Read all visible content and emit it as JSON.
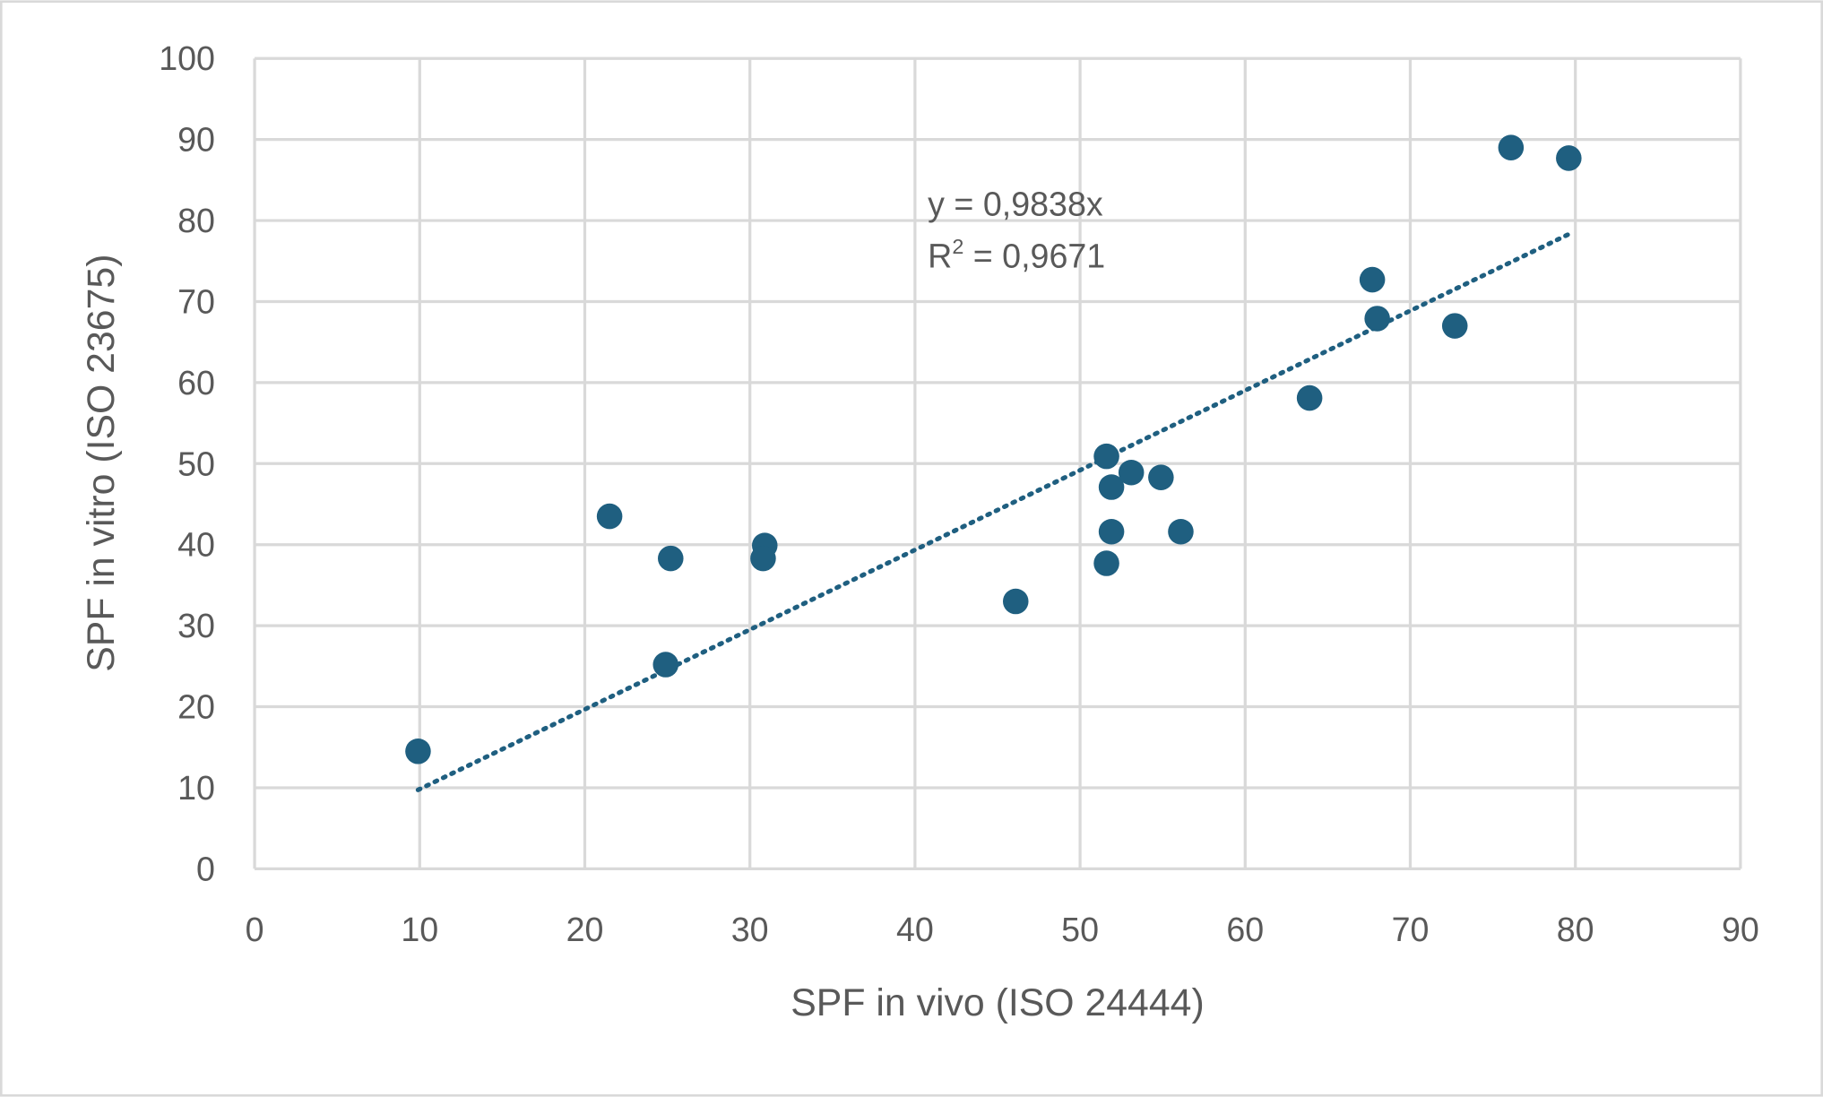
{
  "chart_data": {
    "type": "scatter",
    "xlabel": "SPF in vivo (ISO 24444)",
    "ylabel": "SPF in vitro (ISO 23675)",
    "xlim": [
      0,
      90
    ],
    "ylim": [
      0,
      100
    ],
    "xticks": [
      0,
      10,
      20,
      30,
      40,
      50,
      60,
      70,
      80,
      90
    ],
    "yticks": [
      0,
      10,
      20,
      30,
      40,
      50,
      60,
      70,
      80,
      90,
      100
    ],
    "grid": true,
    "marker_color": "#1f5f80",
    "gridline_color": "#d9d9d9",
    "points": [
      {
        "x": 9.9,
        "y": 14.5
      },
      {
        "x": 21.5,
        "y": 43.5
      },
      {
        "x": 25.2,
        "y": 38.3
      },
      {
        "x": 24.9,
        "y": 25.2
      },
      {
        "x": 30.9,
        "y": 39.9
      },
      {
        "x": 30.8,
        "y": 38.3
      },
      {
        "x": 46.1,
        "y": 33.0
      },
      {
        "x": 51.6,
        "y": 50.9
      },
      {
        "x": 51.9,
        "y": 47.1
      },
      {
        "x": 53.1,
        "y": 48.9
      },
      {
        "x": 54.9,
        "y": 48.3
      },
      {
        "x": 51.9,
        "y": 41.6
      },
      {
        "x": 56.1,
        "y": 41.6
      },
      {
        "x": 51.6,
        "y": 37.7
      },
      {
        "x": 63.9,
        "y": 58.1
      },
      {
        "x": 67.7,
        "y": 72.7
      },
      {
        "x": 68.0,
        "y": 67.9
      },
      {
        "x": 72.7,
        "y": 67.0
      },
      {
        "x": 76.1,
        "y": 89.0
      },
      {
        "x": 79.6,
        "y": 87.7
      }
    ],
    "trendline": {
      "type": "linear-through-origin",
      "slope": 0.9838,
      "x_range": [
        9.9,
        79.6
      ],
      "style": "dotted",
      "equation_label": "y = 0,9838x",
      "r2_label_prefix": "R",
      "r2_label_sup": "2",
      "r2_label_value": " = 0,9671"
    }
  }
}
